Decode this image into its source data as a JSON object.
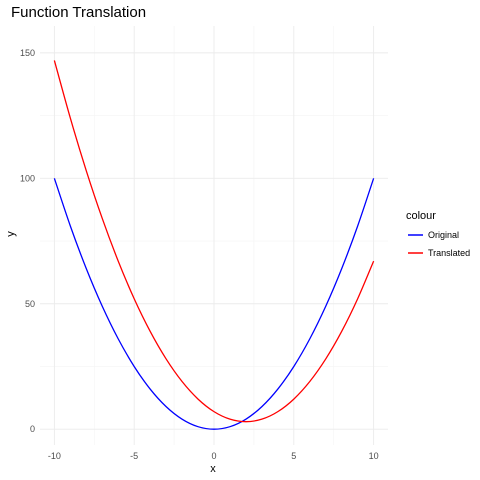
{
  "chart_data": {
    "type": "line",
    "title": "Function Translation",
    "xlabel": "x",
    "ylabel": "y",
    "xlim": [
      -10,
      10
    ],
    "ylim": [
      0,
      150
    ],
    "x_ticks": [
      -10,
      -5,
      0,
      5,
      10
    ],
    "y_ticks": [
      0,
      50,
      100,
      150
    ],
    "x_tick_labels": [
      "-10",
      "-5",
      "0",
      "5",
      "10"
    ],
    "y_tick_labels": [
      "0",
      "50",
      "100",
      "150"
    ],
    "grid": true,
    "legend": {
      "title": "colour",
      "position": "right"
    },
    "series": [
      {
        "name": "Original",
        "color": "#0000ff",
        "x": [
          -10,
          -9,
          -8,
          -7,
          -6,
          -5,
          -4,
          -3,
          -2,
          -1,
          0,
          1,
          2,
          3,
          4,
          5,
          6,
          7,
          8,
          9,
          10
        ],
        "y": [
          100,
          81,
          64,
          49,
          36,
          25,
          16,
          9,
          4,
          1,
          0,
          1,
          4,
          9,
          16,
          25,
          36,
          49,
          64,
          81,
          100
        ]
      },
      {
        "name": "Translated",
        "color": "#ff0000",
        "x": [
          -10,
          -9,
          -8,
          -7,
          -6,
          -5,
          -4,
          -3,
          -2,
          -1,
          0,
          1,
          2,
          3,
          4,
          5,
          6,
          7,
          8,
          9,
          10
        ],
        "y": [
          147,
          124,
          103,
          84,
          67,
          52,
          39,
          28,
          19,
          12,
          7,
          4,
          3,
          4,
          7,
          12,
          19,
          28,
          39,
          52,
          67
        ]
      }
    ]
  }
}
